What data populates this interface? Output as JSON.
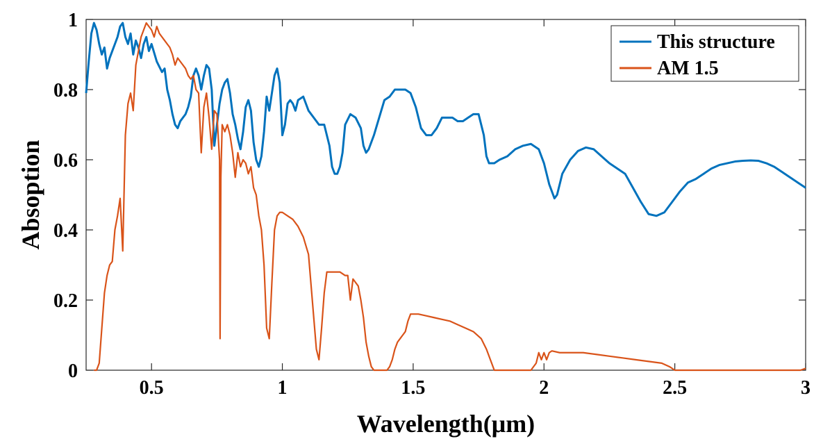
{
  "chart_data": {
    "type": "line",
    "title": "",
    "xlabel": "Wavelength(μm)",
    "ylabel": "Absoption",
    "xlim": [
      0.25,
      3.0
    ],
    "ylim": [
      0,
      1
    ],
    "x_ticks": [
      0.5,
      1,
      1.5,
      2,
      2.5,
      3
    ],
    "x_tick_labels": [
      "0.5",
      "1",
      "1.5",
      "2",
      "2.5",
      "3"
    ],
    "y_ticks": [
      0,
      0.2,
      0.4,
      0.6,
      0.8,
      1
    ],
    "y_tick_labels": [
      "0",
      "0.2",
      "0.4",
      "0.6",
      "0.8",
      "1"
    ],
    "grid": false,
    "legend_position": "top-right",
    "series": [
      {
        "name": "This structure",
        "color": "#0072BD",
        "points": [
          [
            0.25,
            0.79
          ],
          [
            0.26,
            0.88
          ],
          [
            0.27,
            0.96
          ],
          [
            0.28,
            0.99
          ],
          [
            0.29,
            0.97
          ],
          [
            0.3,
            0.93
          ],
          [
            0.31,
            0.9
          ],
          [
            0.32,
            0.92
          ],
          [
            0.33,
            0.86
          ],
          [
            0.34,
            0.89
          ],
          [
            0.35,
            0.91
          ],
          [
            0.36,
            0.93
          ],
          [
            0.37,
            0.95
          ],
          [
            0.38,
            0.98
          ],
          [
            0.39,
            0.99
          ],
          [
            0.4,
            0.95
          ],
          [
            0.41,
            0.93
          ],
          [
            0.42,
            0.96
          ],
          [
            0.43,
            0.9
          ],
          [
            0.44,
            0.94
          ],
          [
            0.45,
            0.92
          ],
          [
            0.46,
            0.89
          ],
          [
            0.47,
            0.93
          ],
          [
            0.48,
            0.95
          ],
          [
            0.49,
            0.91
          ],
          [
            0.5,
            0.93
          ],
          [
            0.52,
            0.88
          ],
          [
            0.54,
            0.85
          ],
          [
            0.55,
            0.86
          ],
          [
            0.56,
            0.8
          ],
          [
            0.57,
            0.77
          ],
          [
            0.58,
            0.73
          ],
          [
            0.59,
            0.7
          ],
          [
            0.6,
            0.69
          ],
          [
            0.61,
            0.71
          ],
          [
            0.62,
            0.72
          ],
          [
            0.63,
            0.73
          ],
          [
            0.64,
            0.75
          ],
          [
            0.65,
            0.78
          ],
          [
            0.66,
            0.84
          ],
          [
            0.67,
            0.86
          ],
          [
            0.68,
            0.84
          ],
          [
            0.69,
            0.8
          ],
          [
            0.7,
            0.84
          ],
          [
            0.71,
            0.87
          ],
          [
            0.72,
            0.86
          ],
          [
            0.73,
            0.8
          ],
          [
            0.74,
            0.64
          ],
          [
            0.75,
            0.7
          ],
          [
            0.76,
            0.76
          ],
          [
            0.77,
            0.8
          ],
          [
            0.78,
            0.82
          ],
          [
            0.79,
            0.83
          ],
          [
            0.8,
            0.79
          ],
          [
            0.81,
            0.73
          ],
          [
            0.82,
            0.7
          ],
          [
            0.83,
            0.66
          ],
          [
            0.84,
            0.63
          ],
          [
            0.85,
            0.68
          ],
          [
            0.86,
            0.75
          ],
          [
            0.87,
            0.77
          ],
          [
            0.88,
            0.74
          ],
          [
            0.89,
            0.65
          ],
          [
            0.9,
            0.6
          ],
          [
            0.91,
            0.58
          ],
          [
            0.92,
            0.61
          ],
          [
            0.93,
            0.68
          ],
          [
            0.94,
            0.78
          ],
          [
            0.95,
            0.74
          ],
          [
            0.96,
            0.79
          ],
          [
            0.97,
            0.84
          ],
          [
            0.98,
            0.86
          ],
          [
            0.99,
            0.82
          ],
          [
            1.0,
            0.67
          ],
          [
            1.01,
            0.7
          ],
          [
            1.02,
            0.76
          ],
          [
            1.03,
            0.77
          ],
          [
            1.04,
            0.76
          ],
          [
            1.05,
            0.74
          ],
          [
            1.06,
            0.77
          ],
          [
            1.08,
            0.78
          ],
          [
            1.1,
            0.74
          ],
          [
            1.12,
            0.72
          ],
          [
            1.14,
            0.7
          ],
          [
            1.16,
            0.7
          ],
          [
            1.18,
            0.64
          ],
          [
            1.19,
            0.58
          ],
          [
            1.2,
            0.56
          ],
          [
            1.21,
            0.56
          ],
          [
            1.22,
            0.58
          ],
          [
            1.23,
            0.62
          ],
          [
            1.24,
            0.7
          ],
          [
            1.26,
            0.73
          ],
          [
            1.28,
            0.72
          ],
          [
            1.3,
            0.69
          ],
          [
            1.31,
            0.64
          ],
          [
            1.32,
            0.62
          ],
          [
            1.33,
            0.63
          ],
          [
            1.35,
            0.67
          ],
          [
            1.37,
            0.72
          ],
          [
            1.39,
            0.77
          ],
          [
            1.41,
            0.78
          ],
          [
            1.43,
            0.8
          ],
          [
            1.45,
            0.8
          ],
          [
            1.47,
            0.8
          ],
          [
            1.49,
            0.79
          ],
          [
            1.51,
            0.75
          ],
          [
            1.53,
            0.69
          ],
          [
            1.55,
            0.67
          ],
          [
            1.57,
            0.67
          ],
          [
            1.59,
            0.69
          ],
          [
            1.61,
            0.72
          ],
          [
            1.63,
            0.72
          ],
          [
            1.65,
            0.72
          ],
          [
            1.67,
            0.71
          ],
          [
            1.69,
            0.71
          ],
          [
            1.71,
            0.72
          ],
          [
            1.73,
            0.73
          ],
          [
            1.75,
            0.73
          ],
          [
            1.77,
            0.67
          ],
          [
            1.78,
            0.61
          ],
          [
            1.79,
            0.59
          ],
          [
            1.81,
            0.59
          ],
          [
            1.83,
            0.6
          ],
          [
            1.86,
            0.61
          ],
          [
            1.89,
            0.63
          ],
          [
            1.92,
            0.64
          ],
          [
            1.95,
            0.645
          ],
          [
            1.98,
            0.63
          ],
          [
            2.0,
            0.59
          ],
          [
            2.02,
            0.53
          ],
          [
            2.04,
            0.49
          ],
          [
            2.05,
            0.5
          ],
          [
            2.07,
            0.56
          ],
          [
            2.1,
            0.6
          ],
          [
            2.13,
            0.625
          ],
          [
            2.16,
            0.635
          ],
          [
            2.19,
            0.63
          ],
          [
            2.22,
            0.61
          ],
          [
            2.25,
            0.59
          ],
          [
            2.28,
            0.575
          ],
          [
            2.31,
            0.56
          ],
          [
            2.34,
            0.52
          ],
          [
            2.37,
            0.48
          ],
          [
            2.4,
            0.445
          ],
          [
            2.43,
            0.44
          ],
          [
            2.46,
            0.45
          ],
          [
            2.49,
            0.48
          ],
          [
            2.52,
            0.51
          ],
          [
            2.55,
            0.535
          ],
          [
            2.58,
            0.545
          ],
          [
            2.61,
            0.56
          ],
          [
            2.64,
            0.575
          ],
          [
            2.67,
            0.585
          ],
          [
            2.7,
            0.59
          ],
          [
            2.73,
            0.595
          ],
          [
            2.76,
            0.597
          ],
          [
            2.79,
            0.598
          ],
          [
            2.82,
            0.597
          ],
          [
            2.85,
            0.59
          ],
          [
            2.88,
            0.58
          ],
          [
            2.91,
            0.565
          ],
          [
            2.94,
            0.55
          ],
          [
            2.97,
            0.535
          ],
          [
            3.0,
            0.52
          ]
        ]
      },
      {
        "name": "AM 1.5",
        "color": "#D95319",
        "points": [
          [
            0.28,
            0.0
          ],
          [
            0.29,
            0.0
          ],
          [
            0.3,
            0.02
          ],
          [
            0.31,
            0.12
          ],
          [
            0.32,
            0.22
          ],
          [
            0.33,
            0.27
          ],
          [
            0.34,
            0.3
          ],
          [
            0.35,
            0.31
          ],
          [
            0.36,
            0.4
          ],
          [
            0.37,
            0.44
          ],
          [
            0.38,
            0.49
          ],
          [
            0.39,
            0.34
          ],
          [
            0.4,
            0.67
          ],
          [
            0.41,
            0.76
          ],
          [
            0.42,
            0.79
          ],
          [
            0.43,
            0.74
          ],
          [
            0.44,
            0.87
          ],
          [
            0.45,
            0.91
          ],
          [
            0.46,
            0.95
          ],
          [
            0.47,
            0.97
          ],
          [
            0.48,
            0.99
          ],
          [
            0.49,
            0.98
          ],
          [
            0.5,
            0.97
          ],
          [
            0.51,
            0.95
          ],
          [
            0.52,
            0.98
          ],
          [
            0.53,
            0.96
          ],
          [
            0.54,
            0.95
          ],
          [
            0.55,
            0.94
          ],
          [
            0.56,
            0.93
          ],
          [
            0.57,
            0.92
          ],
          [
            0.58,
            0.9
          ],
          [
            0.59,
            0.87
          ],
          [
            0.6,
            0.89
          ],
          [
            0.61,
            0.88
          ],
          [
            0.62,
            0.87
          ],
          [
            0.63,
            0.86
          ],
          [
            0.64,
            0.84
          ],
          [
            0.65,
            0.83
          ],
          [
            0.66,
            0.84
          ],
          [
            0.67,
            0.8
          ],
          [
            0.68,
            0.79
          ],
          [
            0.69,
            0.62
          ],
          [
            0.7,
            0.75
          ],
          [
            0.71,
            0.79
          ],
          [
            0.72,
            0.72
          ],
          [
            0.73,
            0.63
          ],
          [
            0.74,
            0.74
          ],
          [
            0.75,
            0.73
          ],
          [
            0.76,
            0.6
          ],
          [
            0.762,
            0.09
          ],
          [
            0.765,
            0.55
          ],
          [
            0.77,
            0.7
          ],
          [
            0.78,
            0.68
          ],
          [
            0.79,
            0.7
          ],
          [
            0.8,
            0.67
          ],
          [
            0.81,
            0.62
          ],
          [
            0.82,
            0.55
          ],
          [
            0.83,
            0.62
          ],
          [
            0.84,
            0.58
          ],
          [
            0.85,
            0.6
          ],
          [
            0.86,
            0.59
          ],
          [
            0.87,
            0.56
          ],
          [
            0.88,
            0.58
          ],
          [
            0.89,
            0.52
          ],
          [
            0.9,
            0.5
          ],
          [
            0.91,
            0.44
          ],
          [
            0.92,
            0.4
          ],
          [
            0.93,
            0.3
          ],
          [
            0.94,
            0.12
          ],
          [
            0.95,
            0.09
          ],
          [
            0.96,
            0.25
          ],
          [
            0.97,
            0.4
          ],
          [
            0.98,
            0.44
          ],
          [
            0.99,
            0.45
          ],
          [
            1.0,
            0.45
          ],
          [
            1.02,
            0.44
          ],
          [
            1.04,
            0.43
          ],
          [
            1.06,
            0.41
          ],
          [
            1.08,
            0.38
          ],
          [
            1.1,
            0.33
          ],
          [
            1.11,
            0.24
          ],
          [
            1.12,
            0.15
          ],
          [
            1.13,
            0.06
          ],
          [
            1.14,
            0.03
          ],
          [
            1.15,
            0.12
          ],
          [
            1.16,
            0.22
          ],
          [
            1.17,
            0.28
          ],
          [
            1.18,
            0.28
          ],
          [
            1.2,
            0.28
          ],
          [
            1.22,
            0.28
          ],
          [
            1.24,
            0.27
          ],
          [
            1.25,
            0.27
          ],
          [
            1.26,
            0.2
          ],
          [
            1.27,
            0.26
          ],
          [
            1.28,
            0.25
          ],
          [
            1.29,
            0.24
          ],
          [
            1.3,
            0.2
          ],
          [
            1.31,
            0.15
          ],
          [
            1.32,
            0.08
          ],
          [
            1.33,
            0.04
          ],
          [
            1.34,
            0.01
          ],
          [
            1.35,
            0.0
          ],
          [
            1.38,
            0.0
          ],
          [
            1.4,
            0.0
          ],
          [
            1.41,
            0.01
          ],
          [
            1.42,
            0.03
          ],
          [
            1.43,
            0.06
          ],
          [
            1.44,
            0.08
          ],
          [
            1.45,
            0.09
          ],
          [
            1.46,
            0.1
          ],
          [
            1.47,
            0.11
          ],
          [
            1.48,
            0.14
          ],
          [
            1.49,
            0.16
          ],
          [
            1.5,
            0.16
          ],
          [
            1.52,
            0.16
          ],
          [
            1.55,
            0.155
          ],
          [
            1.58,
            0.15
          ],
          [
            1.61,
            0.145
          ],
          [
            1.64,
            0.14
          ],
          [
            1.67,
            0.13
          ],
          [
            1.7,
            0.12
          ],
          [
            1.73,
            0.11
          ],
          [
            1.76,
            0.09
          ],
          [
            1.78,
            0.06
          ],
          [
            1.8,
            0.02
          ],
          [
            1.81,
            0.0
          ],
          [
            1.95,
            0.0
          ],
          [
            1.97,
            0.02
          ],
          [
            1.98,
            0.05
          ],
          [
            1.99,
            0.03
          ],
          [
            2.0,
            0.05
          ],
          [
            2.01,
            0.03
          ],
          [
            2.02,
            0.05
          ],
          [
            2.03,
            0.055
          ],
          [
            2.06,
            0.05
          ],
          [
            2.1,
            0.05
          ],
          [
            2.15,
            0.05
          ],
          [
            2.2,
            0.045
          ],
          [
            2.25,
            0.04
          ],
          [
            2.3,
            0.035
          ],
          [
            2.35,
            0.03
          ],
          [
            2.4,
            0.025
          ],
          [
            2.45,
            0.02
          ],
          [
            2.48,
            0.01
          ],
          [
            2.5,
            0.0
          ],
          [
            2.6,
            0.0
          ],
          [
            2.8,
            0.0
          ],
          [
            2.98,
            0.0
          ],
          [
            3.0,
            0.005
          ]
        ]
      }
    ]
  }
}
